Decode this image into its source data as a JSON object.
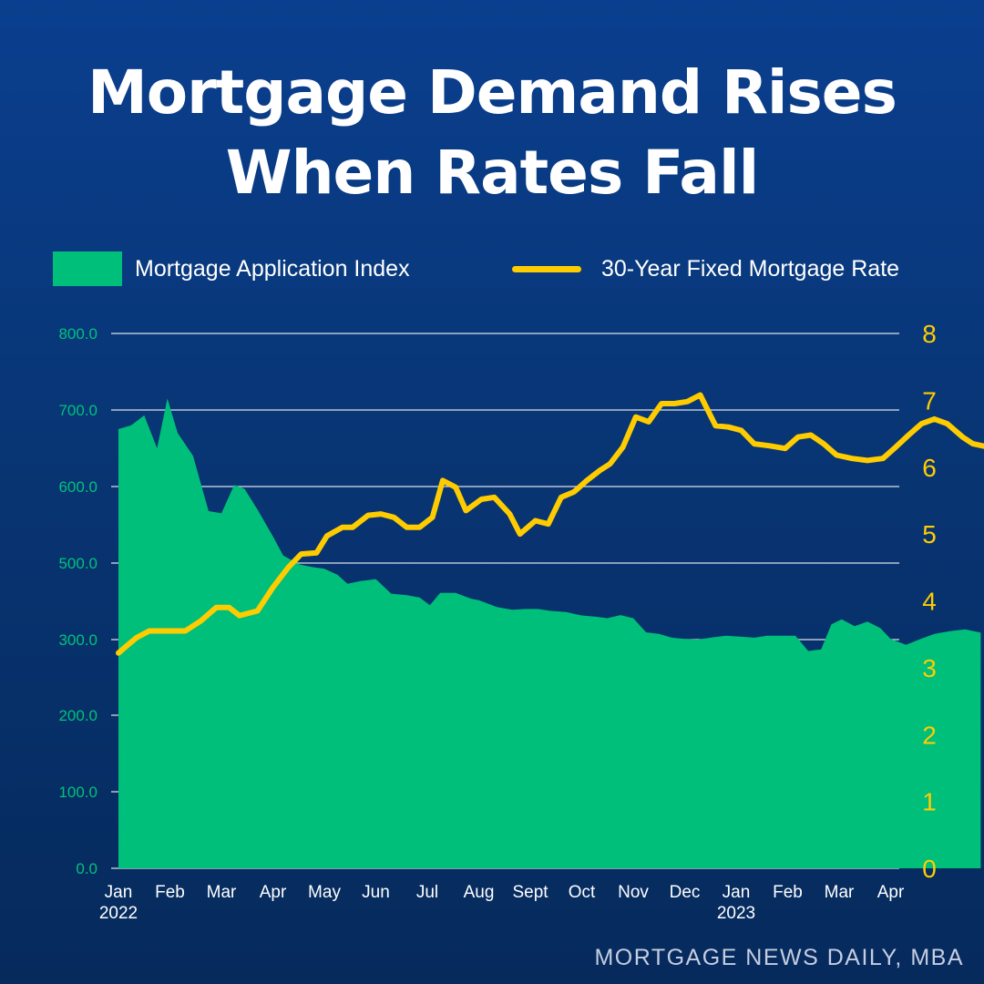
{
  "title_line1": "Mortgage Demand Rises",
  "title_line2": "When Rates Fall",
  "source": "MORTGAGE NEWS DAILY, MBA",
  "colors": {
    "background": "#083574",
    "index_area": "#00bf7a",
    "rate_line": "#ffcc00",
    "grid": "#ffffff"
  },
  "chart_data": {
    "type": "area",
    "x_start_label": "Jan 2022",
    "x_tick_labels": [
      "Jan",
      "Feb",
      "Mar",
      "Apr",
      "May",
      "Jun",
      "Jul",
      "Aug",
      "Sept",
      "Oct",
      "Nov",
      "Dec",
      "Jan",
      "Feb",
      "Mar",
      "Apr"
    ],
    "x_year_labels": [
      {
        "month_index": 0,
        "label": "2022"
      },
      {
        "month_index": 12,
        "label": "2023"
      }
    ],
    "y_left": {
      "ticks": [
        "0.0",
        "100.0",
        "200.0",
        "300.0",
        "500.0",
        "600.0",
        "700.0",
        "800.0"
      ],
      "scale": "non-linear (as printed)"
    },
    "y_right": {
      "ticks": [
        "0",
        "1",
        "2",
        "3",
        "4",
        "5",
        "6",
        "7",
        "8"
      ],
      "range": [
        0,
        8
      ]
    },
    "grid": true,
    "legend_position": "top",
    "series": [
      {
        "name": "Mortgage Application Index",
        "type": "area",
        "axis": "left",
        "points": [
          [
            0.0,
            675
          ],
          [
            0.25,
            680
          ],
          [
            0.5,
            693
          ],
          [
            0.75,
            650
          ],
          [
            0.95,
            715
          ],
          [
            1.15,
            670
          ],
          [
            1.45,
            640
          ],
          [
            1.75,
            568
          ],
          [
            2.0,
            565
          ],
          [
            2.25,
            602
          ],
          [
            2.45,
            597
          ],
          [
            2.7,
            570
          ],
          [
            3.0,
            535
          ],
          [
            3.2,
            510
          ],
          [
            3.5,
            497
          ],
          [
            3.75,
            490
          ],
          [
            4.0,
            485
          ],
          [
            4.25,
            470
          ],
          [
            4.45,
            446
          ],
          [
            4.7,
            453
          ],
          [
            5.0,
            458
          ],
          [
            5.3,
            420
          ],
          [
            5.6,
            416
          ],
          [
            5.85,
            410
          ],
          [
            6.05,
            390
          ],
          [
            6.25,
            422
          ],
          [
            6.55,
            422
          ],
          [
            6.85,
            407
          ],
          [
            7.0,
            403
          ],
          [
            7.35,
            385
          ],
          [
            7.65,
            378
          ],
          [
            7.9,
            380
          ],
          [
            8.15,
            380
          ],
          [
            8.4,
            375
          ],
          [
            8.7,
            372
          ],
          [
            9.0,
            363
          ],
          [
            9.25,
            360
          ],
          [
            9.5,
            356
          ],
          [
            9.75,
            364
          ],
          [
            10.0,
            356
          ],
          [
            10.25,
            319
          ],
          [
            10.5,
            315
          ],
          [
            10.75,
            305
          ],
          [
            11.0,
            302
          ],
          [
            11.25,
            300
          ],
          [
            11.5,
            305
          ],
          [
            11.8,
            310
          ],
          [
            12.05,
            308
          ],
          [
            12.35,
            305
          ],
          [
            12.6,
            310
          ],
          [
            12.9,
            310
          ],
          [
            13.15,
            310
          ],
          [
            13.4,
            285
          ],
          [
            13.65,
            287
          ],
          [
            13.85,
            340
          ],
          [
            14.05,
            353
          ],
          [
            14.3,
            335
          ],
          [
            14.55,
            347
          ],
          [
            14.8,
            330
          ],
          [
            15.0,
            302
          ],
          [
            15.3,
            293
          ],
          [
            15.55,
            300
          ],
          [
            15.85,
            315
          ],
          [
            16.15,
            322
          ],
          [
            16.45,
            327
          ],
          [
            16.75,
            318
          ]
        ]
      },
      {
        "name": "30-Year Fixed Mortgage Rate",
        "type": "line",
        "axis": "right",
        "points": [
          [
            0.0,
            3.22
          ],
          [
            0.15,
            3.32
          ],
          [
            0.35,
            3.45
          ],
          [
            0.6,
            3.55
          ],
          [
            0.85,
            3.55
          ],
          [
            1.1,
            3.55
          ],
          [
            1.3,
            3.55
          ],
          [
            1.6,
            3.7
          ],
          [
            1.9,
            3.9
          ],
          [
            2.15,
            3.9
          ],
          [
            2.35,
            3.78
          ],
          [
            2.7,
            3.85
          ],
          [
            3.0,
            4.2
          ],
          [
            3.3,
            4.5
          ],
          [
            3.55,
            4.7
          ],
          [
            3.85,
            4.72
          ],
          [
            4.05,
            4.97
          ],
          [
            4.35,
            5.1
          ],
          [
            4.55,
            5.1
          ],
          [
            4.85,
            5.28
          ],
          [
            5.1,
            5.3
          ],
          [
            5.35,
            5.25
          ],
          [
            5.6,
            5.1
          ],
          [
            5.85,
            5.1
          ],
          [
            6.1,
            5.25
          ],
          [
            6.3,
            5.8
          ],
          [
            6.55,
            5.7
          ],
          [
            6.75,
            5.35
          ],
          [
            7.05,
            5.52
          ],
          [
            7.3,
            5.55
          ],
          [
            7.6,
            5.3
          ],
          [
            7.8,
            5.0
          ],
          [
            8.1,
            5.2
          ],
          [
            8.35,
            5.15
          ],
          [
            8.6,
            5.55
          ],
          [
            8.85,
            5.63
          ],
          [
            9.1,
            5.8
          ],
          [
            9.35,
            5.95
          ],
          [
            9.55,
            6.05
          ],
          [
            9.8,
            6.3
          ],
          [
            10.05,
            6.75
          ],
          [
            10.3,
            6.68
          ],
          [
            10.55,
            6.95
          ],
          [
            10.8,
            6.95
          ],
          [
            11.05,
            6.98
          ],
          [
            11.3,
            7.08
          ],
          [
            11.6,
            6.62
          ],
          [
            11.85,
            6.6
          ],
          [
            12.1,
            6.55
          ],
          [
            12.35,
            6.35
          ],
          [
            12.65,
            6.32
          ],
          [
            12.95,
            6.28
          ],
          [
            13.2,
            6.45
          ],
          [
            13.45,
            6.48
          ],
          [
            13.7,
            6.35
          ],
          [
            13.95,
            6.18
          ],
          [
            14.25,
            6.13
          ],
          [
            14.55,
            6.1
          ],
          [
            14.85,
            6.13
          ],
          [
            15.1,
            6.3
          ],
          [
            15.35,
            6.48
          ],
          [
            15.6,
            6.65
          ],
          [
            15.85,
            6.72
          ],
          [
            16.1,
            6.65
          ],
          [
            16.4,
            6.45
          ],
          [
            16.6,
            6.35
          ],
          [
            16.9,
            6.3
          ]
        ]
      }
    ]
  }
}
